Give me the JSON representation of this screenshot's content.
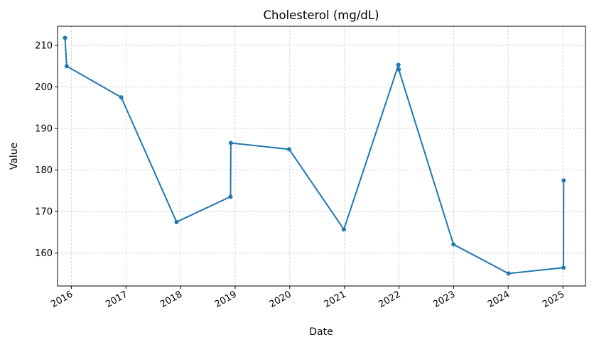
{
  "chart_data": {
    "type": "line",
    "title": "Cholesterol (mg/dL)",
    "xlabel": "Date",
    "ylabel": "Value",
    "x_ticks": [
      "2016",
      "2017",
      "2018",
      "2019",
      "2020",
      "2021",
      "2022",
      "2023",
      "2024",
      "2025"
    ],
    "y_ticks": [
      160,
      170,
      180,
      190,
      200,
      210
    ],
    "xlim": [
      "2015-10-01",
      "2025-06-01"
    ],
    "ylim": [
      152.1,
      214.6
    ],
    "grid": true,
    "colors": {
      "line": "#1f77b4",
      "grid": "#cccccc"
    },
    "series": [
      {
        "points": [
          {
            "x": "2015-11-20",
            "y": 211.8
          },
          {
            "x": "2015-12-01",
            "y": 205.0
          },
          {
            "x": "2016-11-30",
            "y": 197.5
          },
          {
            "x": "2017-12-05",
            "y": 167.5
          },
          {
            "x": "2018-12-01",
            "y": 173.6
          },
          {
            "x": "2018-12-03",
            "y": 186.5
          },
          {
            "x": "2019-12-28",
            "y": 185.0
          },
          {
            "x": "2020-12-28",
            "y": 165.7
          },
          {
            "x": "2021-12-28",
            "y": 205.3
          },
          {
            "x": "2021-12-30",
            "y": 204.2
          },
          {
            "x": "2022-12-31",
            "y": 162.1
          },
          {
            "x": "2024-01-03",
            "y": 155.1
          },
          {
            "x": "2025-01-05",
            "y": 156.5
          },
          {
            "x": "2025-01-06",
            "y": 177.5
          }
        ]
      }
    ]
  }
}
